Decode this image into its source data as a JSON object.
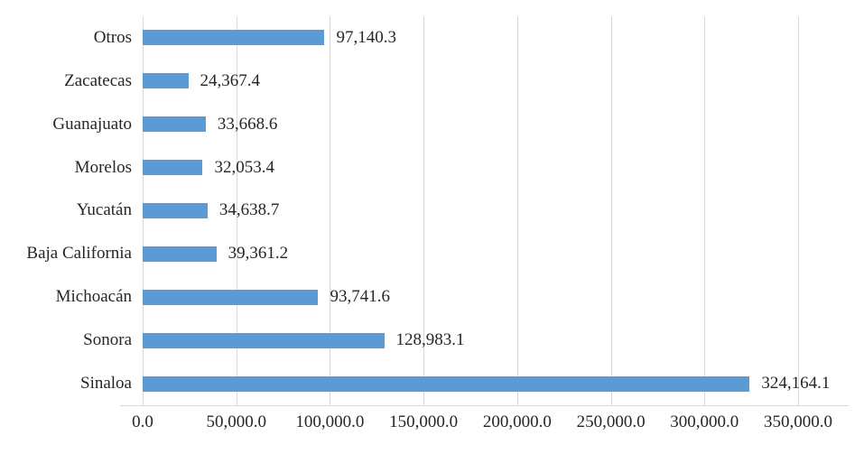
{
  "chart_data": {
    "type": "bar",
    "orientation": "horizontal",
    "title": "",
    "xlabel": "",
    "ylabel": "",
    "legend": "none",
    "grid": "vertical",
    "categories": [
      "Otros",
      "Zacatecas",
      "Guanajuato",
      "Morelos",
      "Yucatán",
      "Baja California",
      "Michoacán",
      "Sonora",
      "Sinaloa"
    ],
    "values": [
      97140.3,
      24367.4,
      33668.6,
      32053.4,
      34638.7,
      39361.2,
      93741.6,
      128983.1,
      324164.1
    ],
    "value_labels": [
      "97,140.3",
      "24,367.4",
      "33,668.6",
      "32,053.4",
      "34,638.7",
      "39,361.2",
      "93,741.6",
      "128,983.1",
      "324,164.1"
    ],
    "x_ticks": [
      0,
      50000,
      100000,
      150000,
      200000,
      250000,
      300000,
      350000
    ],
    "x_tick_labels": [
      "0.0",
      "50,000.0",
      "100,000.0",
      "150,000.0",
      "200,000.0",
      "250,000.0",
      "300,000.0",
      "350,000.0"
    ],
    "xlim": [
      0,
      350000
    ],
    "colors": {
      "bar": "#5B9BD5",
      "gridline": "#D9D9D9",
      "axis_line": "#D9D9D9",
      "text": "#262626",
      "background": "#FFFFFF"
    }
  }
}
